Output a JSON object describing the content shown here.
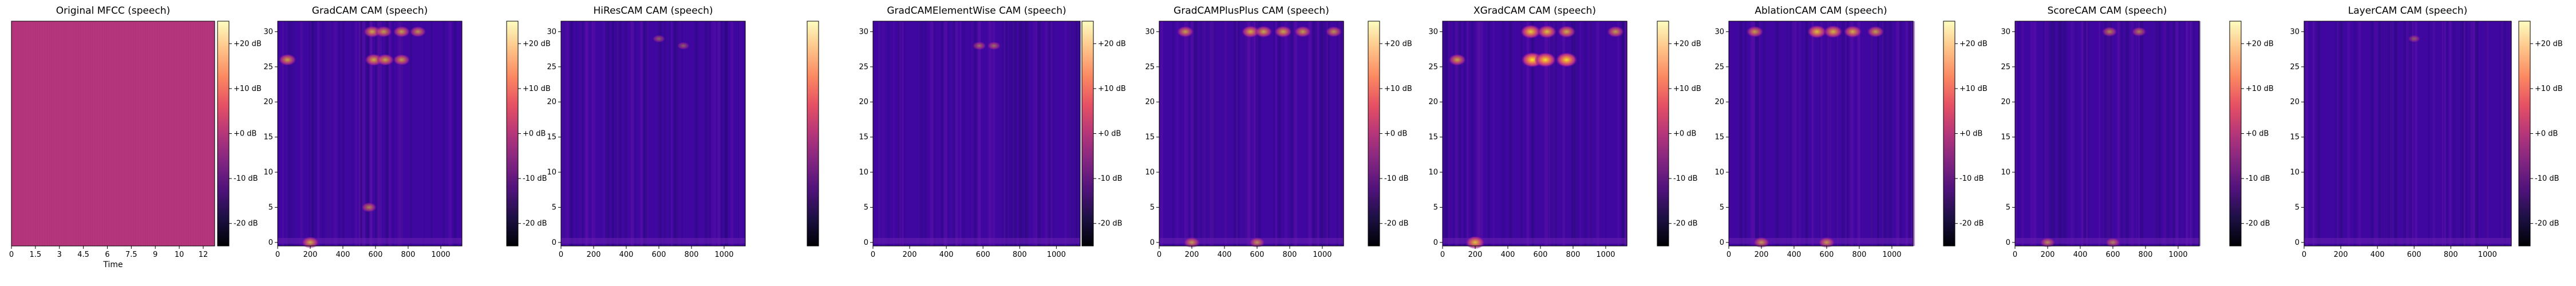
{
  "figure": {
    "colormap_mfcc": "magma",
    "colormap_cam": "plasma",
    "colorbar_colormap": "magma"
  },
  "chart_data": [
    {
      "type": "heatmap",
      "title": "Original MFCC (speech)",
      "xlabel": "Time",
      "x_ticks": [
        "0",
        "1.5",
        "3",
        "4.5",
        "6",
        "7.5",
        "9",
        "10",
        "12"
      ],
      "y_ticks": [],
      "colorbar": {
        "ticks": [
          "+20 dB",
          "+10 dB",
          "+0 dB",
          "-10 dB",
          "-20 dB"
        ],
        "range_db": [
          -25,
          25
        ]
      },
      "description_level": "uniform"
    },
    {
      "type": "heatmap",
      "title": "GradCAM CAM (speech)",
      "xlabel": "",
      "x_ticks": [
        "0",
        "200",
        "400",
        "600",
        "800",
        "1000"
      ],
      "x_range": [
        0,
        1130
      ],
      "y_ticks": [
        "0",
        "5",
        "10",
        "15",
        "20",
        "25",
        "30"
      ],
      "y_range": [
        -0.5,
        31.5
      ],
      "colorbar": {
        "ticks": [
          "+20 dB",
          "+10 dB",
          "+0 dB",
          "-10 dB",
          "-20 dB"
        ],
        "range_db": [
          -25,
          25
        ]
      },
      "hotspots": [
        {
          "x": 580,
          "y": 30,
          "intensity": 0.55
        },
        {
          "x": 650,
          "y": 30,
          "intensity": 0.5
        },
        {
          "x": 760,
          "y": 30,
          "intensity": 0.5
        },
        {
          "x": 860,
          "y": 30,
          "intensity": 0.45
        },
        {
          "x": 60,
          "y": 26,
          "intensity": 0.55
        },
        {
          "x": 590,
          "y": 26,
          "intensity": 0.6
        },
        {
          "x": 660,
          "y": 26,
          "intensity": 0.55
        },
        {
          "x": 760,
          "y": 26,
          "intensity": 0.5
        },
        {
          "x": 200,
          "y": 0,
          "intensity": 0.55
        },
        {
          "x": 560,
          "y": 5,
          "intensity": 0.35
        }
      ]
    },
    {
      "type": "heatmap",
      "title": "HiResCAM CAM (speech)",
      "xlabel": "",
      "x_ticks": [
        "0",
        "200",
        "400",
        "600",
        "800",
        "1000"
      ],
      "x_range": [
        0,
        1130
      ],
      "y_ticks": [
        "0",
        "5",
        "10",
        "15",
        "20",
        "25",
        "30"
      ],
      "y_range": [
        -0.5,
        31.5
      ],
      "colorbar": {
        "ticks": [],
        "range_db": [
          -25,
          25
        ]
      },
      "hotspots": [
        {
          "x": 600,
          "y": 29,
          "intensity": 0.12
        },
        {
          "x": 750,
          "y": 28,
          "intensity": 0.1
        }
      ]
    },
    {
      "type": "heatmap",
      "title": "GradCAMElementWise CAM (speech)",
      "xlabel": "",
      "x_ticks": [
        "0",
        "200",
        "400",
        "600",
        "800",
        "1000"
      ],
      "x_range": [
        0,
        1130
      ],
      "y_ticks": [
        "0",
        "5",
        "10",
        "15",
        "20",
        "25",
        "30"
      ],
      "y_range": [
        -0.5,
        31.5
      ],
      "colorbar": {
        "ticks": [
          "+20 dB",
          "+10 dB",
          "+0 dB",
          "-10 dB",
          "-20 dB"
        ],
        "range_db": [
          -25,
          25
        ]
      },
      "hotspots": [
        {
          "x": 580,
          "y": 28,
          "intensity": 0.2
        },
        {
          "x": 660,
          "y": 28,
          "intensity": 0.18
        }
      ]
    },
    {
      "type": "heatmap",
      "title": "GradCAMPlusPlus CAM (speech)",
      "xlabel": "",
      "x_ticks": [
        "0",
        "200",
        "400",
        "600",
        "800",
        "1000"
      ],
      "x_range": [
        0,
        1130
      ],
      "y_ticks": [
        "0",
        "5",
        "10",
        "15",
        "20",
        "25",
        "30"
      ],
      "y_range": [
        -0.5,
        31.5
      ],
      "colorbar": {
        "ticks": [
          "+20 dB",
          "+10 dB",
          "+0 dB",
          "-10 dB",
          "-20 dB"
        ],
        "range_db": [
          -25,
          25
        ]
      },
      "hotspots": [
        {
          "x": 160,
          "y": 30,
          "intensity": 0.5
        },
        {
          "x": 560,
          "y": 30,
          "intensity": 0.6
        },
        {
          "x": 640,
          "y": 30,
          "intensity": 0.55
        },
        {
          "x": 760,
          "y": 30,
          "intensity": 0.55
        },
        {
          "x": 880,
          "y": 30,
          "intensity": 0.5
        },
        {
          "x": 1070,
          "y": 30,
          "intensity": 0.45
        },
        {
          "x": 200,
          "y": 0,
          "intensity": 0.45
        },
        {
          "x": 600,
          "y": 0,
          "intensity": 0.4
        }
      ]
    },
    {
      "type": "heatmap",
      "title": "XGradCAM CAM (speech)",
      "xlabel": "",
      "x_ticks": [
        "0",
        "200",
        "400",
        "600",
        "800",
        "1000"
      ],
      "x_range": [
        0,
        1130
      ],
      "y_ticks": [
        "0",
        "5",
        "10",
        "15",
        "20",
        "25",
        "30"
      ],
      "y_range": [
        -0.5,
        31.5
      ],
      "colorbar": {
        "ticks": [
          "+20 dB",
          "+10 dB",
          "+0 dB",
          "-10 dB",
          "-20 dB"
        ],
        "range_db": [
          -25,
          25
        ]
      },
      "hotspots": [
        {
          "x": 540,
          "y": 30,
          "intensity": 0.8
        },
        {
          "x": 640,
          "y": 30,
          "intensity": 0.7
        },
        {
          "x": 760,
          "y": 30,
          "intensity": 0.6
        },
        {
          "x": 1060,
          "y": 30,
          "intensity": 0.5
        },
        {
          "x": 550,
          "y": 26,
          "intensity": 0.95
        },
        {
          "x": 630,
          "y": 26,
          "intensity": 0.9
        },
        {
          "x": 760,
          "y": 26,
          "intensity": 0.9
        },
        {
          "x": 90,
          "y": 26,
          "intensity": 0.55
        },
        {
          "x": 200,
          "y": 0,
          "intensity": 0.7
        }
      ]
    },
    {
      "type": "heatmap",
      "title": "AblationCAM CAM (speech)",
      "xlabel": "",
      "x_ticks": [
        "0",
        "200",
        "400",
        "600",
        "800",
        "1000"
      ],
      "x_range": [
        0,
        1130
      ],
      "y_ticks": [
        "0",
        "5",
        "10",
        "15",
        "20",
        "25",
        "30"
      ],
      "y_range": [
        -0.5,
        31.5
      ],
      "colorbar": {
        "ticks": [
          "+20 dB",
          "+10 dB",
          "+0 dB",
          "-10 dB",
          "-20 dB"
        ],
        "range_db": [
          -25,
          25
        ]
      },
      "hotspots": [
        {
          "x": 160,
          "y": 30,
          "intensity": 0.5
        },
        {
          "x": 540,
          "y": 30,
          "intensity": 0.7
        },
        {
          "x": 640,
          "y": 30,
          "intensity": 0.65
        },
        {
          "x": 760,
          "y": 30,
          "intensity": 0.6
        },
        {
          "x": 900,
          "y": 30,
          "intensity": 0.5
        },
        {
          "x": 200,
          "y": 0,
          "intensity": 0.45
        },
        {
          "x": 600,
          "y": 0,
          "intensity": 0.45
        }
      ]
    },
    {
      "type": "heatmap",
      "title": "ScoreCAM CAM (speech)",
      "xlabel": "",
      "x_ticks": [
        "0",
        "200",
        "400",
        "600",
        "800",
        "1000"
      ],
      "x_range": [
        0,
        1130
      ],
      "y_ticks": [
        "0",
        "5",
        "10",
        "15",
        "20",
        "25",
        "30"
      ],
      "y_range": [
        -0.5,
        31.5
      ],
      "colorbar": {
        "ticks": [
          "+20 dB",
          "+10 dB",
          "+0 dB",
          "-10 dB",
          "-20 dB"
        ],
        "range_db": [
          -25,
          25
        ]
      },
      "hotspots": [
        {
          "x": 580,
          "y": 30,
          "intensity": 0.35
        },
        {
          "x": 760,
          "y": 30,
          "intensity": 0.3
        },
        {
          "x": 200,
          "y": 0,
          "intensity": 0.35
        },
        {
          "x": 600,
          "y": 0,
          "intensity": 0.3
        }
      ]
    },
    {
      "type": "heatmap",
      "title": "LayerCAM CAM (speech)",
      "xlabel": "",
      "x_ticks": [
        "0",
        "200",
        "400",
        "600",
        "800",
        "1000"
      ],
      "x_range": [
        0,
        1130
      ],
      "y_ticks": [
        "0",
        "5",
        "10",
        "15",
        "20",
        "25",
        "30"
      ],
      "y_range": [
        -0.5,
        31.5
      ],
      "colorbar": {
        "ticks": [
          "+20 dB",
          "+10 dB",
          "+0 dB",
          "-10 dB",
          "-20 dB"
        ],
        "range_db": [
          -25,
          25
        ]
      },
      "hotspots": [
        {
          "x": 600,
          "y": 29,
          "intensity": 0.1
        }
      ]
    }
  ]
}
